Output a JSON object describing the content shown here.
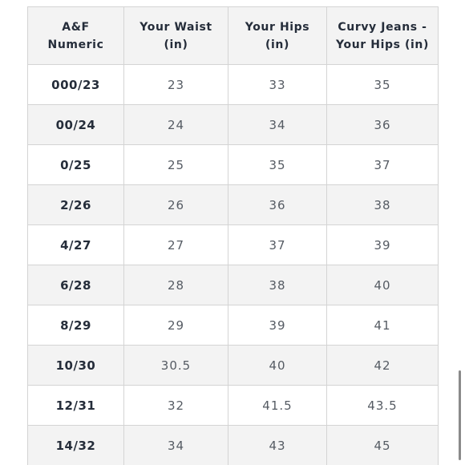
{
  "table": {
    "headers": [
      [
        "A&F",
        "Numeric"
      ],
      [
        "Your Waist",
        "(in)"
      ],
      [
        "Your Hips",
        "(in)"
      ],
      [
        "Curvy Jeans -",
        "Your Hips (in)"
      ]
    ],
    "rows": [
      [
        "000/23",
        "23",
        "33",
        "35"
      ],
      [
        "00/24",
        "24",
        "34",
        "36"
      ],
      [
        "0/25",
        "25",
        "35",
        "37"
      ],
      [
        "2/26",
        "26",
        "36",
        "38"
      ],
      [
        "4/27",
        "27",
        "37",
        "39"
      ],
      [
        "6/28",
        "28",
        "38",
        "40"
      ],
      [
        "8/29",
        "29",
        "39",
        "41"
      ],
      [
        "10/30",
        "30.5",
        "40",
        "42"
      ],
      [
        "12/31",
        "32",
        "41.5",
        "43.5"
      ],
      [
        "14/32",
        "34",
        "43",
        "45"
      ]
    ]
  },
  "colors": {
    "header_text": "#252d3a",
    "body_text": "#555b63",
    "shaded_row": "#f3f3f3",
    "border": "#d4d4d4"
  }
}
